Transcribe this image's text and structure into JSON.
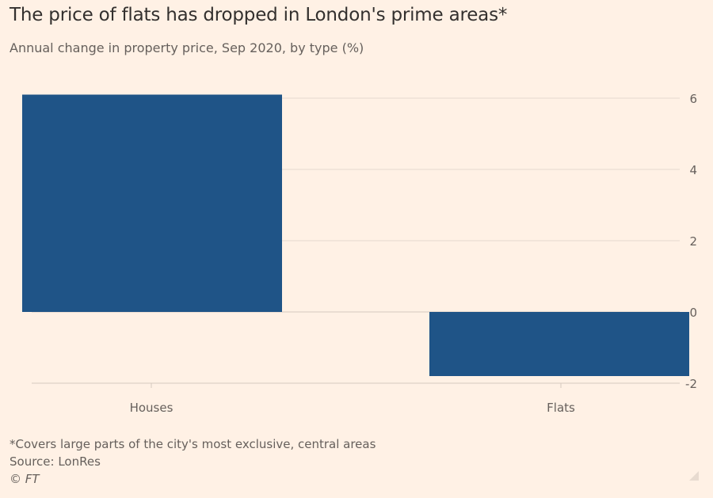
{
  "header": {
    "title": "The price of flats has dropped in London's prime areas*",
    "subtitle": "Annual change in property price, Sep 2020, by type (%)"
  },
  "footer": {
    "note": "*Covers large parts of the city's most exclusive, central areas",
    "source": "Source: LonRes",
    "copyright": "© FT"
  },
  "colors": {
    "background": "#FFF1E5",
    "bar": "#1F5487",
    "gridline": "#E6D9CE",
    "axis": "#D6C9BE",
    "text": "#33302E",
    "muted_text": "#66605C"
  },
  "chart_data": {
    "type": "bar",
    "title": "The price of flats has dropped in London's prime areas*",
    "subtitle": "Annual change in property price, Sep 2020, by type (%)",
    "categories": [
      "Houses",
      "Flats"
    ],
    "values": [
      6.1,
      -1.8
    ],
    "xlabel": "",
    "ylabel": "",
    "ylim": [
      -2,
      6
    ],
    "yticks": [
      6,
      4,
      2,
      0,
      -2
    ],
    "ytick_labels": [
      "6",
      "4",
      "2",
      "0",
      "-2"
    ],
    "y_axis_side": "right",
    "grid": true
  }
}
